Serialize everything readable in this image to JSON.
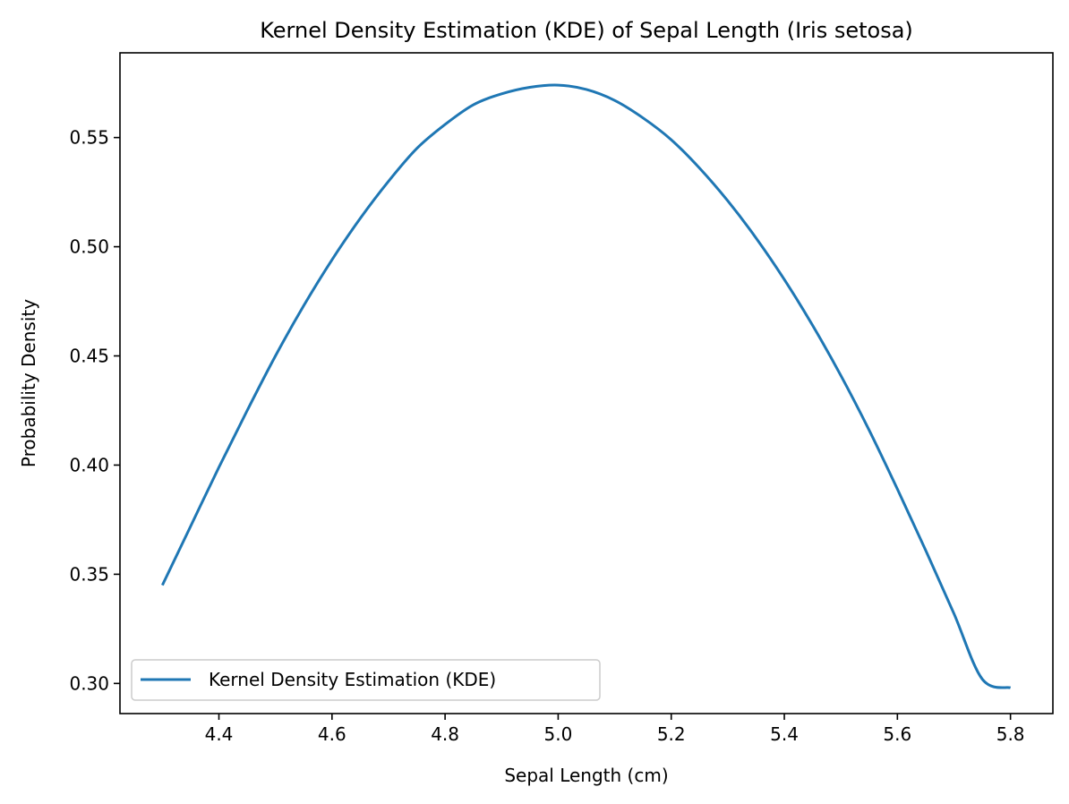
{
  "chart_data": {
    "type": "line",
    "title": "Kernel Density Estimation (KDE) of Sepal Length (Iris setosa)",
    "xlabel": "Sepal Length (cm)",
    "ylabel": "Probability Density",
    "xlim": [
      4.225,
      5.875
    ],
    "ylim": [
      0.2862,
      0.5888
    ],
    "xticks": [
      4.4,
      4.6,
      4.8,
      5.0,
      5.2,
      5.4,
      5.6,
      5.8
    ],
    "xtick_labels": [
      "4.4",
      "4.6",
      "4.8",
      "5.0",
      "5.2",
      "5.4",
      "5.6",
      "5.8"
    ],
    "yticks": [
      0.3,
      0.35,
      0.4,
      0.45,
      0.5,
      0.55
    ],
    "ytick_labels": [
      "0.30",
      "0.35",
      "0.40",
      "0.45",
      "0.50",
      "0.55"
    ],
    "grid": false,
    "legend_position": "lower-left",
    "series": [
      {
        "name": "Kernel Density Estimation (KDE)",
        "color": "#1f77b4",
        "x": [
          4.3,
          4.35,
          4.4,
          4.45,
          4.5,
          4.55,
          4.6,
          4.65,
          4.7,
          4.75,
          4.8,
          4.85,
          4.9,
          4.95,
          5.0,
          5.05,
          5.1,
          5.15,
          5.2,
          5.25,
          5.3,
          5.35,
          5.4,
          5.45,
          5.5,
          5.55,
          5.6,
          5.65,
          5.7,
          5.75,
          5.8
        ],
        "y": [
          0.345,
          0.372,
          0.399,
          0.425,
          0.45,
          0.473,
          0.494,
          0.513,
          0.53,
          0.545,
          0.556,
          0.565,
          0.57,
          0.573,
          0.574,
          0.572,
          0.567,
          0.559,
          0.549,
          0.536,
          0.521,
          0.504,
          0.485,
          0.464,
          0.441,
          0.416,
          0.389,
          0.361,
          0.332,
          0.302,
          0.298
        ]
      }
    ]
  }
}
